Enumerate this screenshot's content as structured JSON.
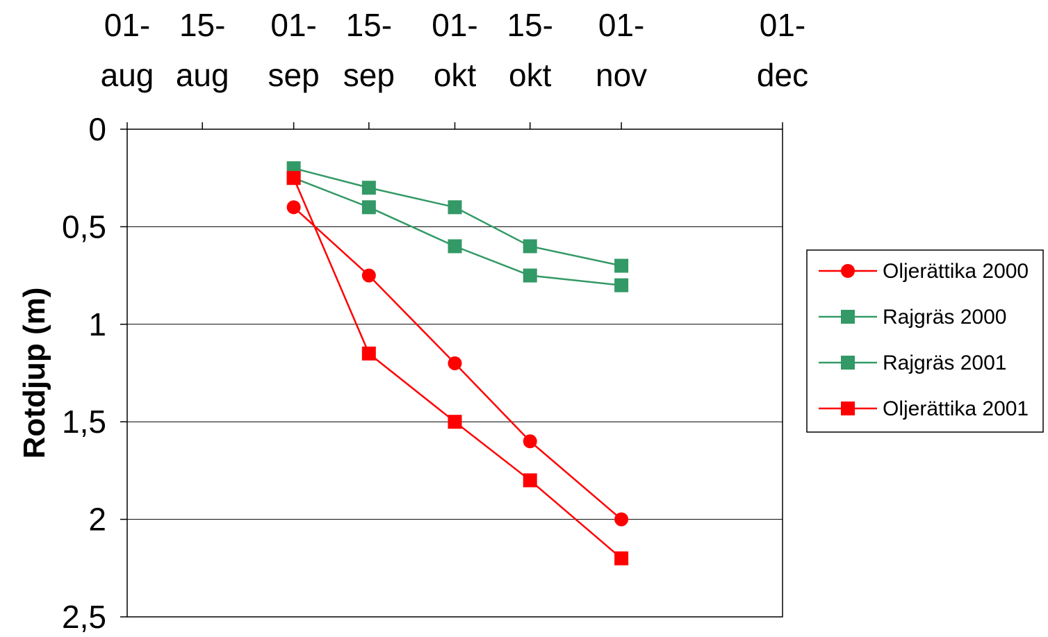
{
  "chart_data": {
    "type": "line",
    "title": "",
    "xlabel": "",
    "ylabel": "Rotdjup (m)",
    "x_axis_position": "top",
    "y_axis_inverted": true,
    "x_ticks": [
      [
        "01-",
        "aug"
      ],
      [
        "15-",
        "aug"
      ],
      [
        "01-",
        "sep"
      ],
      [
        "15-",
        "sep"
      ],
      [
        "01-",
        "okt"
      ],
      [
        "15-",
        "okt"
      ],
      [
        "01-",
        "nov"
      ],
      [
        "01-",
        "dec"
      ]
    ],
    "x_tick_dates": [
      "2000-08-01",
      "2000-08-15",
      "2000-09-01",
      "2000-09-15",
      "2000-10-01",
      "2000-10-15",
      "2000-11-01",
      "2000-12-01"
    ],
    "y_ticks": [
      "0",
      "0,5",
      "1",
      "1,5",
      "2",
      "2,5"
    ],
    "ylim": [
      0,
      2.5
    ],
    "grid": {
      "horizontal": true,
      "vertical": false
    },
    "legend_position": "right",
    "series": [
      {
        "name": "Oljerättika 2000",
        "color": "#ff0000",
        "marker": "circle",
        "x": [
          "2000-09-01",
          "2000-09-15",
          "2000-10-01",
          "2000-10-15",
          "2000-11-01"
        ],
        "y": [
          0.4,
          0.75,
          1.2,
          1.6,
          2.0
        ]
      },
      {
        "name": "Rajgräs 2000",
        "color": "#339966",
        "marker": "square",
        "x": [
          "2000-09-01",
          "2000-09-15",
          "2000-10-01",
          "2000-10-15",
          "2000-11-01"
        ],
        "y": [
          0.2,
          0.3,
          0.4,
          0.6,
          0.7
        ]
      },
      {
        "name": "Rajgräs 2001",
        "color": "#339966",
        "marker": "square",
        "x": [
          "2000-09-01",
          "2000-09-15",
          "2000-10-01",
          "2000-10-15",
          "2000-11-01"
        ],
        "y": [
          0.25,
          0.4,
          0.6,
          0.75,
          0.8
        ]
      },
      {
        "name": "Oljerättika 2001",
        "color": "#ff0000",
        "marker": "square",
        "x": [
          "2000-09-01",
          "2000-09-15",
          "2000-10-01",
          "2000-10-15",
          "2000-11-01"
        ],
        "y": [
          0.25,
          1.15,
          1.5,
          1.8,
          2.2
        ]
      }
    ]
  }
}
